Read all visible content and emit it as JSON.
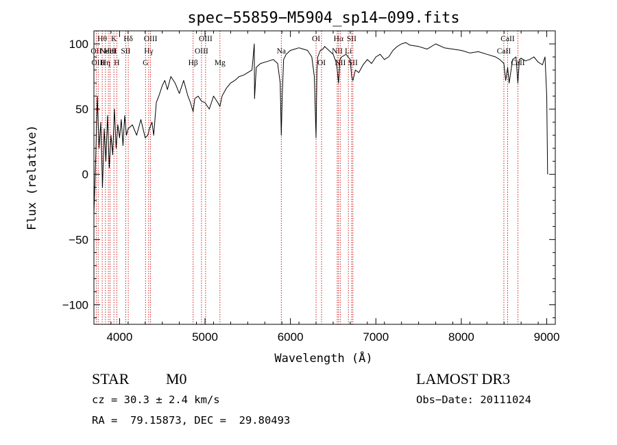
{
  "chart_data": {
    "type": "line",
    "title": "spec−55859−M5904_sp14−099.fits",
    "xlabel": "Wavelength (Å)",
    "ylabel": "Flux (relative)",
    "xlim": [
      3700,
      9100
    ],
    "ylim": [
      -115,
      110
    ],
    "x_ticks": [
      {
        "value": 4000,
        "label": "4000"
      },
      {
        "value": 5000,
        "label": "5000"
      },
      {
        "value": 6000,
        "label": "6000"
      },
      {
        "value": 7000,
        "label": "7000"
      },
      {
        "value": 8000,
        "label": "8000"
      },
      {
        "value": 9000,
        "label": "9000"
      }
    ],
    "y_ticks": [
      {
        "value": 100,
        "label": "100"
      },
      {
        "value": 50,
        "label": "50"
      },
      {
        "value": 0,
        "label": "0"
      },
      {
        "value": -50,
        "label": "−50"
      },
      {
        "value": -100,
        "label": "−100"
      }
    ],
    "series": [
      {
        "name": "flux",
        "color": "#000000",
        "x": [
          3700,
          3720,
          3740,
          3760,
          3780,
          3800,
          3820,
          3840,
          3860,
          3880,
          3900,
          3920,
          3940,
          3960,
          3980,
          4000,
          4020,
          4040,
          4060,
          4080,
          4100,
          4150,
          4200,
          4250,
          4300,
          4330,
          4350,
          4380,
          4400,
          4430,
          4460,
          4500,
          4530,
          4560,
          4600,
          4650,
          4700,
          4750,
          4800,
          4830,
          4861,
          4880,
          4920,
          4960,
          5000,
          5050,
          5100,
          5150,
          5175,
          5200,
          5250,
          5300,
          5350,
          5400,
          5450,
          5500,
          5550,
          5577,
          5580,
          5600,
          5650,
          5700,
          5750,
          5800,
          5850,
          5880,
          5893,
          5905,
          5920,
          5950,
          6000,
          6050,
          6100,
          6150,
          6200,
          6250,
          6280,
          6300,
          6310,
          6320,
          6350,
          6380,
          6400,
          6450,
          6500,
          6540,
          6563,
          6580,
          6600,
          6650,
          6700,
          6716,
          6731,
          6760,
          6800,
          6850,
          6900,
          6950,
          7000,
          7050,
          7100,
          7150,
          7200,
          7250,
          7300,
          7350,
          7400,
          7500,
          7600,
          7700,
          7800,
          7900,
          8000,
          8100,
          8200,
          8300,
          8400,
          8450,
          8498,
          8520,
          8542,
          8560,
          8600,
          8640,
          8662,
          8680,
          8700,
          8750,
          8800,
          8850,
          8900,
          8950,
          8980,
          9000,
          9010
        ],
        "y": [
          -30,
          10,
          60,
          20,
          40,
          -10,
          35,
          10,
          45,
          5,
          30,
          15,
          50,
          20,
          38,
          28,
          42,
          22,
          45,
          30,
          35,
          38,
          30,
          42,
          28,
          30,
          35,
          40,
          30,
          55,
          60,
          68,
          72,
          65,
          75,
          70,
          62,
          72,
          60,
          55,
          48,
          58,
          60,
          56,
          55,
          50,
          60,
          55,
          52,
          60,
          66,
          70,
          72,
          75,
          76,
          78,
          80,
          100,
          58,
          82,
          85,
          86,
          87,
          88,
          85,
          70,
          30,
          62,
          88,
          92,
          95,
          96,
          97,
          96,
          95,
          90,
          75,
          28,
          80,
          90,
          95,
          96,
          98,
          95,
          92,
          85,
          70,
          88,
          90,
          92,
          88,
          75,
          72,
          80,
          78,
          84,
          88,
          85,
          90,
          92,
          88,
          90,
          95,
          98,
          100,
          101,
          99,
          98,
          96,
          100,
          97,
          96,
          95,
          93,
          94,
          92,
          90,
          88,
          85,
          72,
          82,
          70,
          88,
          90,
          70,
          88,
          89,
          87,
          88,
          90,
          86,
          84,
          90,
          60,
          0
        ]
      }
    ],
    "lines": [
      {
        "wl": 3727,
        "names": [
          "OII"
        ],
        "row": 1
      },
      {
        "wl": 3750,
        "names": [
          "OIII"
        ],
        "row": 2
      },
      {
        "wl": 3797,
        "names": [
          "Hθ"
        ],
        "row": 0
      },
      {
        "wl": 3835,
        "names": [
          "Hη"
        ],
        "row": 2
      },
      {
        "wl": 3869,
        "names": [
          "NeIII"
        ],
        "row": 1
      },
      {
        "wl": 3889,
        "names": [
          "HeI"
        ],
        "row": 1
      },
      {
        "wl": 3934,
        "names": [
          "K"
        ],
        "row": 0
      },
      {
        "wl": 3968,
        "names": [
          "H"
        ],
        "row": 2
      },
      {
        "wl": 4072,
        "names": [
          "SII"
        ],
        "row": 1
      },
      {
        "wl": 4102,
        "names": [
          "Hδ"
        ],
        "row": 0
      },
      {
        "wl": 4304,
        "names": [
          "G"
        ],
        "row": 2
      },
      {
        "wl": 4341,
        "names": [
          "Hγ"
        ],
        "row": 1
      },
      {
        "wl": 4363,
        "names": [
          "OIII"
        ],
        "row": 0
      },
      {
        "wl": 4861,
        "names": [
          "Hβ"
        ],
        "row": 2
      },
      {
        "wl": 4959,
        "names": [
          "OIII"
        ],
        "row": 1
      },
      {
        "wl": 5007,
        "names": [
          "OIII"
        ],
        "row": 0
      },
      {
        "wl": 5175,
        "names": [
          "Mg"
        ],
        "row": 2
      },
      {
        "wl": 5893,
        "names": [
          "Na"
        ],
        "row": 1
      },
      {
        "wl": 6300,
        "names": [
          "OI"
        ],
        "row": 0
      },
      {
        "wl": 6364,
        "names": [
          "OI"
        ],
        "row": 2
      },
      {
        "wl": 6548,
        "names": [
          "NII"
        ],
        "row": 1
      },
      {
        "wl": 6563,
        "names": [
          "Hα"
        ],
        "row": 0
      },
      {
        "wl": 6583,
        "names": [
          "NII"
        ],
        "row": 2
      },
      {
        "wl": 6678,
        "names": [
          "Li"
        ],
        "row": 1
      },
      {
        "wl": 6716,
        "names": [
          "SII"
        ],
        "row": 0
      },
      {
        "wl": 6731,
        "names": [
          "SII"
        ],
        "row": 2
      },
      {
        "wl": 8498,
        "names": [
          "CaII"
        ],
        "row": 1
      },
      {
        "wl": 8542,
        "names": [
          "CaII"
        ],
        "row": 0
      },
      {
        "wl": 8662,
        "names": [
          "CaII"
        ],
        "row": 2
      }
    ]
  },
  "info": {
    "object_class": "STAR",
    "subclass": "M0",
    "survey": "LAMOST DR3",
    "cz_text": "cz = 30.3 ± 2.4 km/s",
    "obs_date_text": "Obs−Date: 20111024",
    "radec_text": "RA =  79.15873, DEC =  29.80493"
  }
}
